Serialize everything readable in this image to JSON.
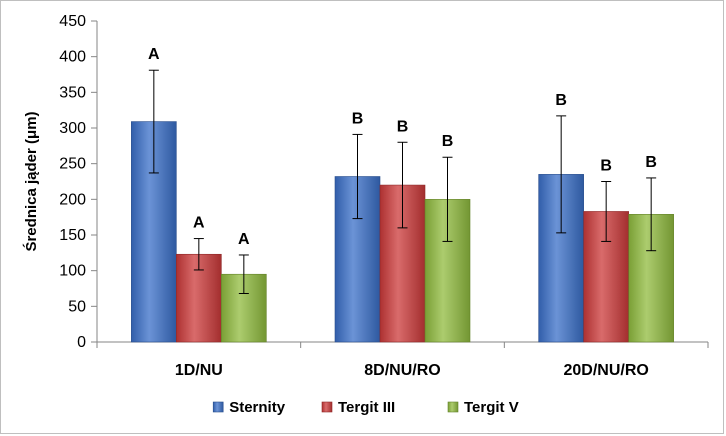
{
  "chart_data": {
    "type": "bar",
    "ylabel": "Średnica jąder (μm)",
    "ylim": [
      0,
      450
    ],
    "yticks": [
      0,
      50,
      100,
      150,
      200,
      250,
      300,
      350,
      400,
      450
    ],
    "categories": [
      "1D/NU",
      "8D/NU/RO",
      "20D/NU/RO"
    ],
    "legend_position": "bottom",
    "grid": false,
    "series": [
      {
        "name": "Sternity",
        "color": "#3a6fc8",
        "values": [
          309,
          232,
          235
        ],
        "errors": [
          72,
          59,
          82
        ],
        "labels": [
          "A",
          "B",
          "B"
        ]
      },
      {
        "name": "Tergit III",
        "color": "#cc3a3a",
        "values": [
          123,
          220,
          183
        ],
        "errors": [
          22,
          60,
          42
        ],
        "labels": [
          "A",
          "B",
          "B"
        ]
      },
      {
        "name": "Tergit V",
        "color": "#90bb3e",
        "values": [
          95,
          200,
          179
        ],
        "errors": [
          27,
          59,
          51
        ],
        "labels": [
          "A",
          "B",
          "B"
        ]
      }
    ]
  }
}
